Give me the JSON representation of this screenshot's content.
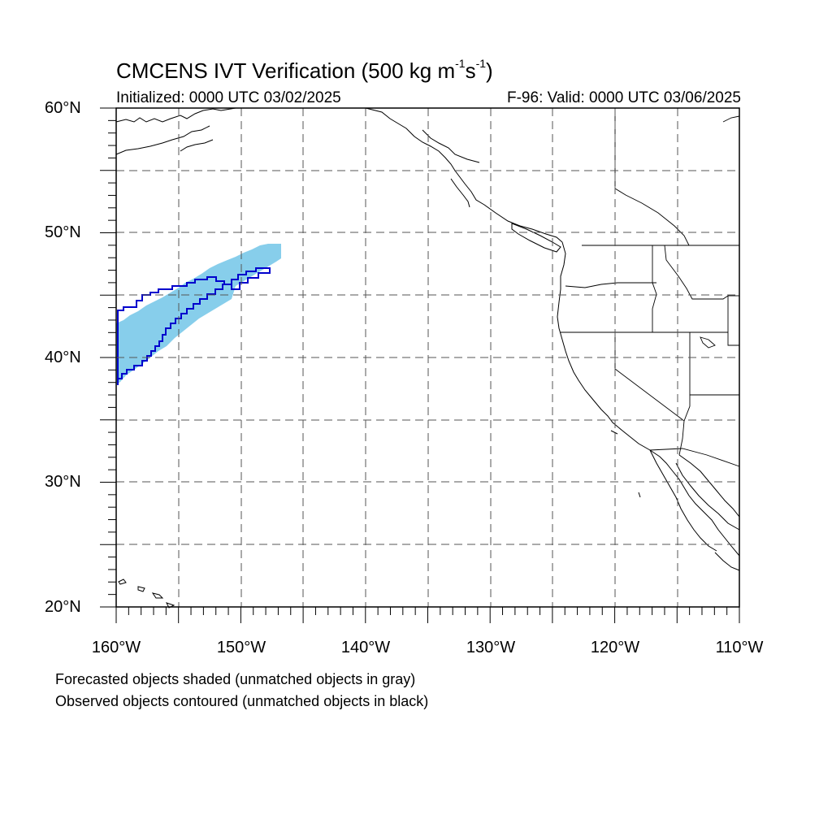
{
  "title": {
    "main": "CMCENS IVT Verification (500 kg m",
    "exp1": "-1",
    "mid": "s",
    "exp2": "-1",
    "close": ")"
  },
  "subtitle_left": "Initialized: 0000 UTC 03/02/2025",
  "subtitle_right": "F-96: Valid: 0000 UTC 03/06/2025",
  "map": {
    "lon_range": [
      -160,
      -110
    ],
    "lat_range": [
      20,
      60
    ],
    "grid_lines": "dashed",
    "colors": {
      "forecast_fill": "#87ceeb",
      "observed_contour": "#0000cd",
      "coastline": "#000000",
      "grid": "#555555"
    }
  },
  "lat_labels": [
    {
      "lat": 60,
      "text": "60°N"
    },
    {
      "lat": 50,
      "text": "50°N"
    },
    {
      "lat": 40,
      "text": "40°N"
    },
    {
      "lat": 30,
      "text": "30°N"
    },
    {
      "lat": 20,
      "text": "20°N"
    }
  ],
  "lon_labels": [
    {
      "lon": -160,
      "text": "160°W"
    },
    {
      "lon": -150,
      "text": "150°W"
    },
    {
      "lon": -140,
      "text": "140°W"
    },
    {
      "lon": -130,
      "text": "130°W"
    },
    {
      "lon": -120,
      "text": "120°W"
    },
    {
      "lon": -110,
      "text": "110°W"
    }
  ],
  "footnotes": [
    "Forecasted objects shaded (unmatched objects in gray)",
    "Observed objects contoured (unmatched objects in black)"
  ]
}
